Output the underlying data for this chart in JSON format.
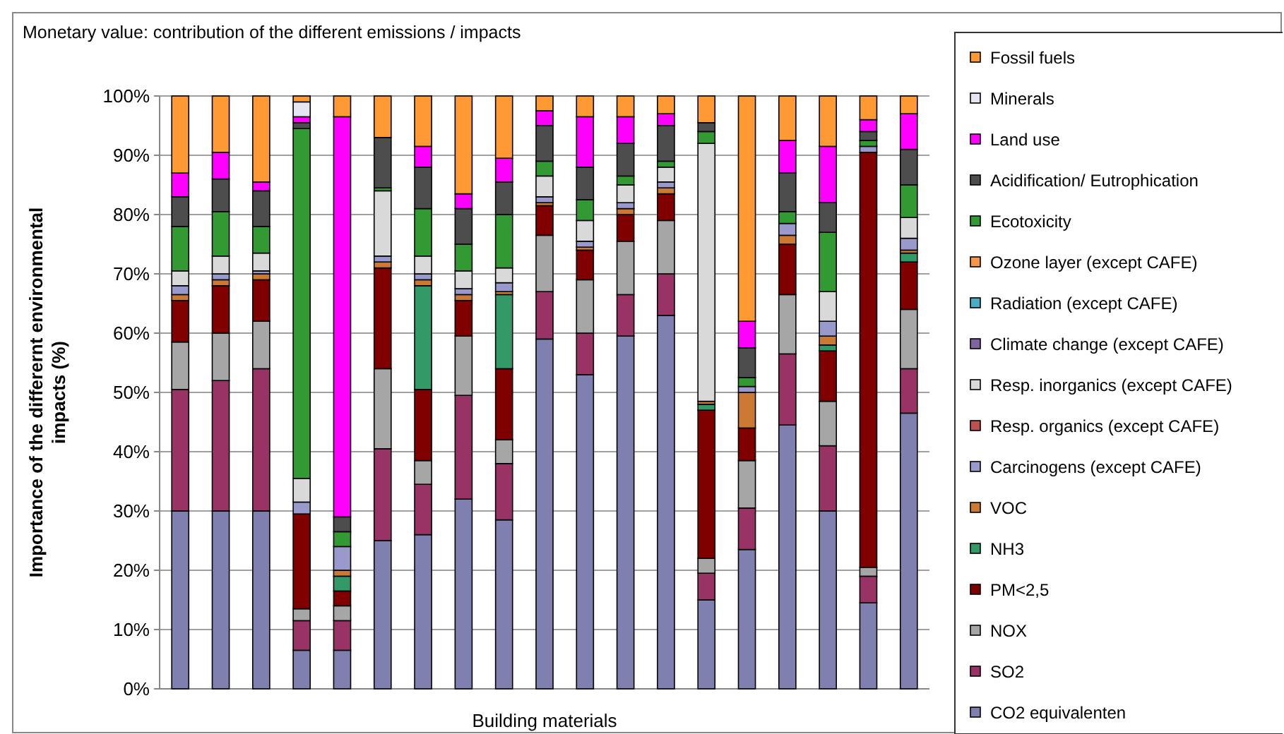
{
  "chart_data": {
    "type": "bar",
    "stacked": true,
    "title": "Monetary value: contribution of the different emissions / impacts",
    "xlabel": "Building materials",
    "ylabel": "Importance of the differernt environmental impacts (%)",
    "categories": [
      null,
      null,
      null,
      null,
      null,
      null,
      null,
      null,
      null,
      null,
      null,
      null,
      null,
      null,
      null,
      null,
      null,
      null,
      null
    ],
    "ylim": [
      0,
      100
    ],
    "yticks": [
      {
        "value": 0,
        "label": "0%"
      },
      {
        "value": 10,
        "label": "10%"
      },
      {
        "value": 20,
        "label": "20%"
      },
      {
        "value": 30,
        "label": "30%"
      },
      {
        "value": 40,
        "label": "40%"
      },
      {
        "value": 50,
        "label": "50%"
      },
      {
        "value": 60,
        "label": "60%"
      },
      {
        "value": 70,
        "label": "70%"
      },
      {
        "value": 80,
        "label": "80%"
      },
      {
        "value": 90,
        "label": "90%"
      },
      {
        "value": 100,
        "label": "100%"
      }
    ],
    "grid": "y",
    "legend": "right",
    "series": [
      {
        "name": "CO2 equivalenten",
        "color": "#7f7fb0",
        "values": [
          30,
          30,
          30,
          6.5,
          6.5,
          25,
          26,
          32,
          28.5,
          59,
          53,
          59.5,
          63,
          15,
          23.5,
          44.5,
          30,
          14.5,
          46.5
        ]
      },
      {
        "name": "SO2",
        "color": "#993366",
        "values": [
          20.5,
          22,
          24,
          5,
          5,
          15.5,
          8.5,
          17.5,
          9.5,
          8,
          7,
          7,
          7,
          4.5,
          7,
          12,
          11,
          4.5,
          7.5
        ]
      },
      {
        "name": "NOX",
        "color": "#a6a6a6",
        "values": [
          8,
          8,
          8,
          2,
          2.5,
          13.5,
          4,
          10,
          4,
          9.5,
          9,
          9,
          9,
          2.5,
          8,
          10,
          7.5,
          1.5,
          10
        ]
      },
      {
        "name": "PM<2,5",
        "color": "#800000",
        "values": [
          7,
          8,
          7,
          16,
          2.5,
          17,
          12,
          6,
          12,
          5,
          5,
          4.5,
          4.5,
          25,
          5.5,
          8.5,
          8.5,
          70,
          8
        ]
      },
      {
        "name": "NH3",
        "color": "#339966",
        "values": [
          0,
          0,
          0,
          0,
          2.5,
          0,
          17.5,
          0,
          12.5,
          0,
          0,
          0,
          0,
          1,
          0,
          0,
          1,
          0,
          1.5
        ]
      },
      {
        "name": "VOC",
        "color": "#cc7a33",
        "values": [
          1,
          1,
          1,
          0,
          1,
          1,
          1,
          1,
          0.5,
          0.5,
          0.5,
          1,
          1,
          0.5,
          6,
          1.5,
          1.5,
          0,
          0.5
        ]
      },
      {
        "name": "Carcinogens (except CAFE)",
        "color": "#9999cc",
        "values": [
          1.5,
          1,
          0.5,
          2,
          4,
          1,
          1,
          1,
          1.5,
          1,
          1,
          1,
          1,
          0,
          1,
          2,
          2.5,
          1,
          2
        ]
      },
      {
        "name": "Resp. organics (except CAFE)",
        "color": "#c0504d",
        "values": [
          0,
          0,
          0,
          0,
          0,
          0,
          0,
          0,
          0,
          0,
          0,
          0,
          0,
          0,
          0,
          0,
          0,
          0,
          0
        ]
      },
      {
        "name": "Resp. inorganics  (except CAFE)",
        "color": "#d9d9d9",
        "values": [
          2.5,
          3,
          3,
          4,
          0,
          11,
          3,
          3,
          2.5,
          3.5,
          3.5,
          3,
          2.5,
          43.5,
          0,
          0,
          5,
          0,
          3.5
        ]
      },
      {
        "name": "Climate change (except CAFE)",
        "color": "#8064a2",
        "values": [
          0,
          0,
          0,
          0,
          0,
          0,
          0,
          0,
          0,
          0,
          0,
          0,
          0,
          0,
          0,
          0,
          0,
          0,
          0
        ]
      },
      {
        "name": "Radiation (except CAFE)",
        "color": "#4bacc6",
        "values": [
          0,
          0,
          0,
          0,
          0,
          0,
          0,
          0,
          0,
          0,
          0,
          0,
          0,
          0,
          0,
          0,
          0,
          0,
          0
        ]
      },
      {
        "name": "Ozone layer (except CAFE)",
        "color": "#f79646",
        "values": [
          0,
          0,
          0,
          0,
          0,
          0,
          0,
          0,
          0,
          0,
          0,
          0,
          0,
          0,
          0,
          0,
          0,
          0,
          0
        ]
      },
      {
        "name": "Ecotoxicity",
        "color": "#339933",
        "values": [
          7.5,
          7.5,
          4.5,
          59,
          2.5,
          0.5,
          8,
          4.5,
          9,
          2.5,
          3.5,
          1.5,
          1,
          2,
          1.5,
          2,
          10,
          1,
          5.5
        ]
      },
      {
        "name": "Acidification/ Eutrophication",
        "color": "#4d4d4d",
        "values": [
          5,
          5.5,
          6,
          1,
          2.5,
          8.5,
          7,
          6,
          5.5,
          6,
          5.5,
          5.5,
          6,
          1.5,
          5,
          6.5,
          5,
          1.5,
          6
        ]
      },
      {
        "name": "Land use",
        "color": "#ff00ff",
        "values": [
          4,
          4.5,
          1.5,
          1,
          67.5,
          0,
          3.5,
          2.5,
          4,
          2.5,
          8.5,
          4.5,
          2,
          0,
          4.5,
          5.5,
          9.5,
          2,
          6
        ]
      },
      {
        "name": "Minerals",
        "color": "#e6e6f2",
        "values": [
          0,
          0,
          0,
          2.5,
          0,
          0,
          0,
          0,
          0,
          0,
          0,
          0,
          0,
          0,
          0,
          0,
          0,
          0,
          0
        ]
      },
      {
        "name": "Fossil fuels",
        "color": "#ff9933",
        "values": [
          13,
          9.5,
          14.5,
          1,
          3.5,
          7,
          8.5,
          16.5,
          10.5,
          2.5,
          3.5,
          3.5,
          3,
          4.5,
          38,
          7.5,
          8.5,
          4,
          3
        ]
      }
    ]
  }
}
